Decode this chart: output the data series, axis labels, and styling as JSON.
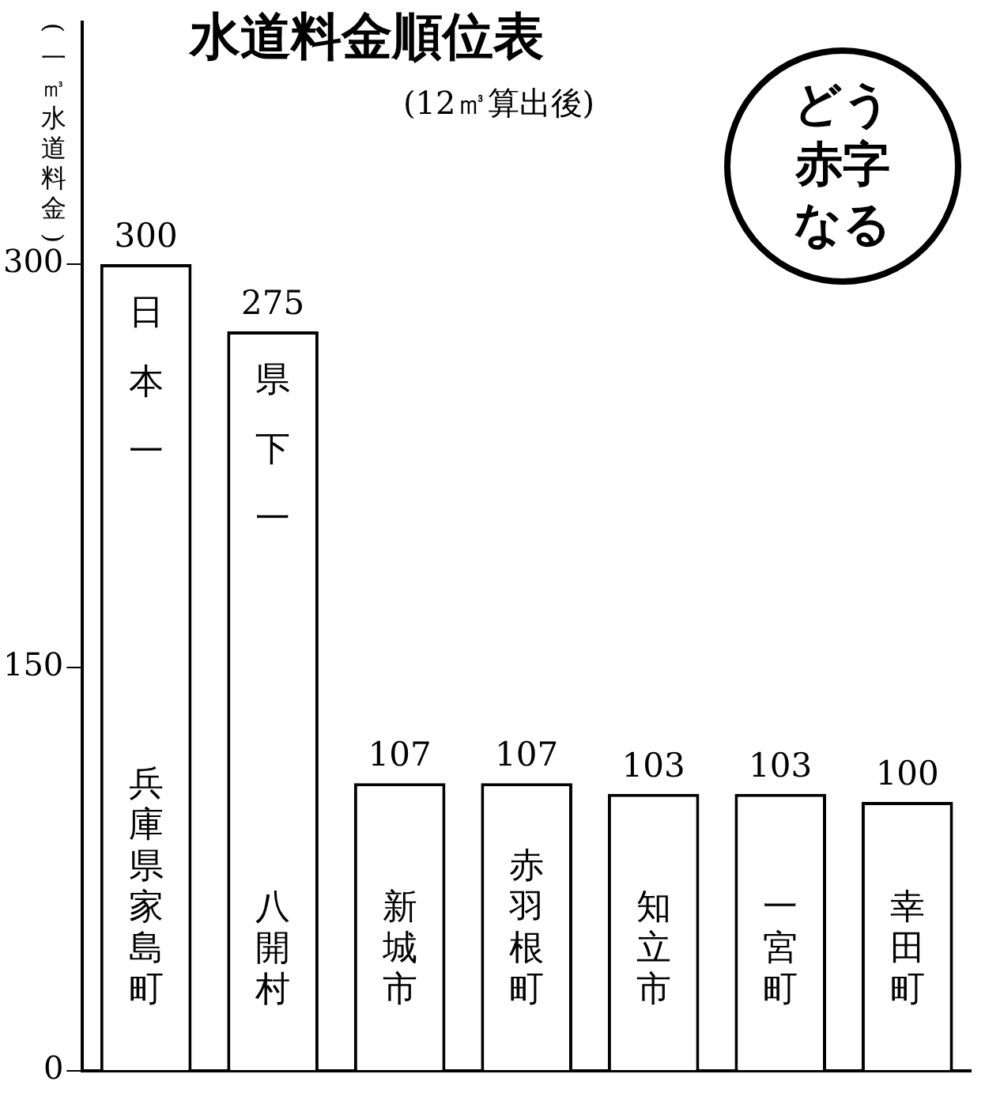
{
  "chart_data": {
    "type": "bar",
    "title": "水道料金順位表",
    "subtitle": "(12㎥算出後)",
    "ylabel": "(一㎥水道料金)",
    "categories": [
      "兵庫県家島町",
      "八開村",
      "新城市",
      "赤羽根町",
      "知立市",
      "一宮町",
      "幸田町"
    ],
    "values": [
      300,
      275,
      107,
      107,
      103,
      103,
      100
    ],
    "color": "#ffffff",
    "ylim": [
      0,
      390
    ],
    "yticks": [
      0,
      150,
      300
    ],
    "data_labels": true,
    "grid": false,
    "legend": false,
    "annotations": [
      {
        "text": "日本一",
        "x": "兵庫県家島町",
        "y": 300
      },
      {
        "text": "県下一",
        "x": "八開村",
        "y": 275
      },
      "どう",
      "赤字",
      "なる"
    ]
  }
}
